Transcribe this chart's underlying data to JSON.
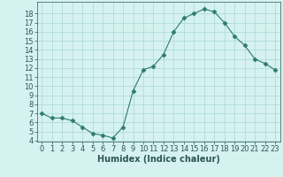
{
  "x": [
    0,
    1,
    2,
    3,
    4,
    5,
    6,
    7,
    8,
    9,
    10,
    11,
    12,
    13,
    14,
    15,
    16,
    17,
    18,
    19,
    20,
    21,
    22,
    23
  ],
  "y": [
    7.0,
    6.5,
    6.5,
    6.2,
    5.5,
    4.8,
    4.6,
    4.3,
    5.5,
    9.5,
    11.8,
    12.2,
    13.5,
    16.0,
    17.5,
    18.0,
    18.5,
    18.2,
    17.0,
    15.5,
    14.5,
    13.0,
    12.5,
    11.8
  ],
  "line_color": "#2e7b6e",
  "marker": "D",
  "marker_size": 2.5,
  "bg_color": "#d5f2f0",
  "grid_color": "#a8d8d4",
  "xlabel": "Humidex (Indice chaleur)",
  "xlabel_fontsize": 7,
  "tick_fontsize": 6,
  "ylim": [
    4,
    19
  ],
  "xlim": [
    -0.5,
    23.5
  ],
  "yticks": [
    4,
    5,
    6,
    7,
    8,
    9,
    10,
    11,
    12,
    13,
    14,
    15,
    16,
    17,
    18
  ],
  "xticks": [
    0,
    1,
    2,
    3,
    4,
    5,
    6,
    7,
    8,
    9,
    10,
    11,
    12,
    13,
    14,
    15,
    16,
    17,
    18,
    19,
    20,
    21,
    22,
    23
  ]
}
